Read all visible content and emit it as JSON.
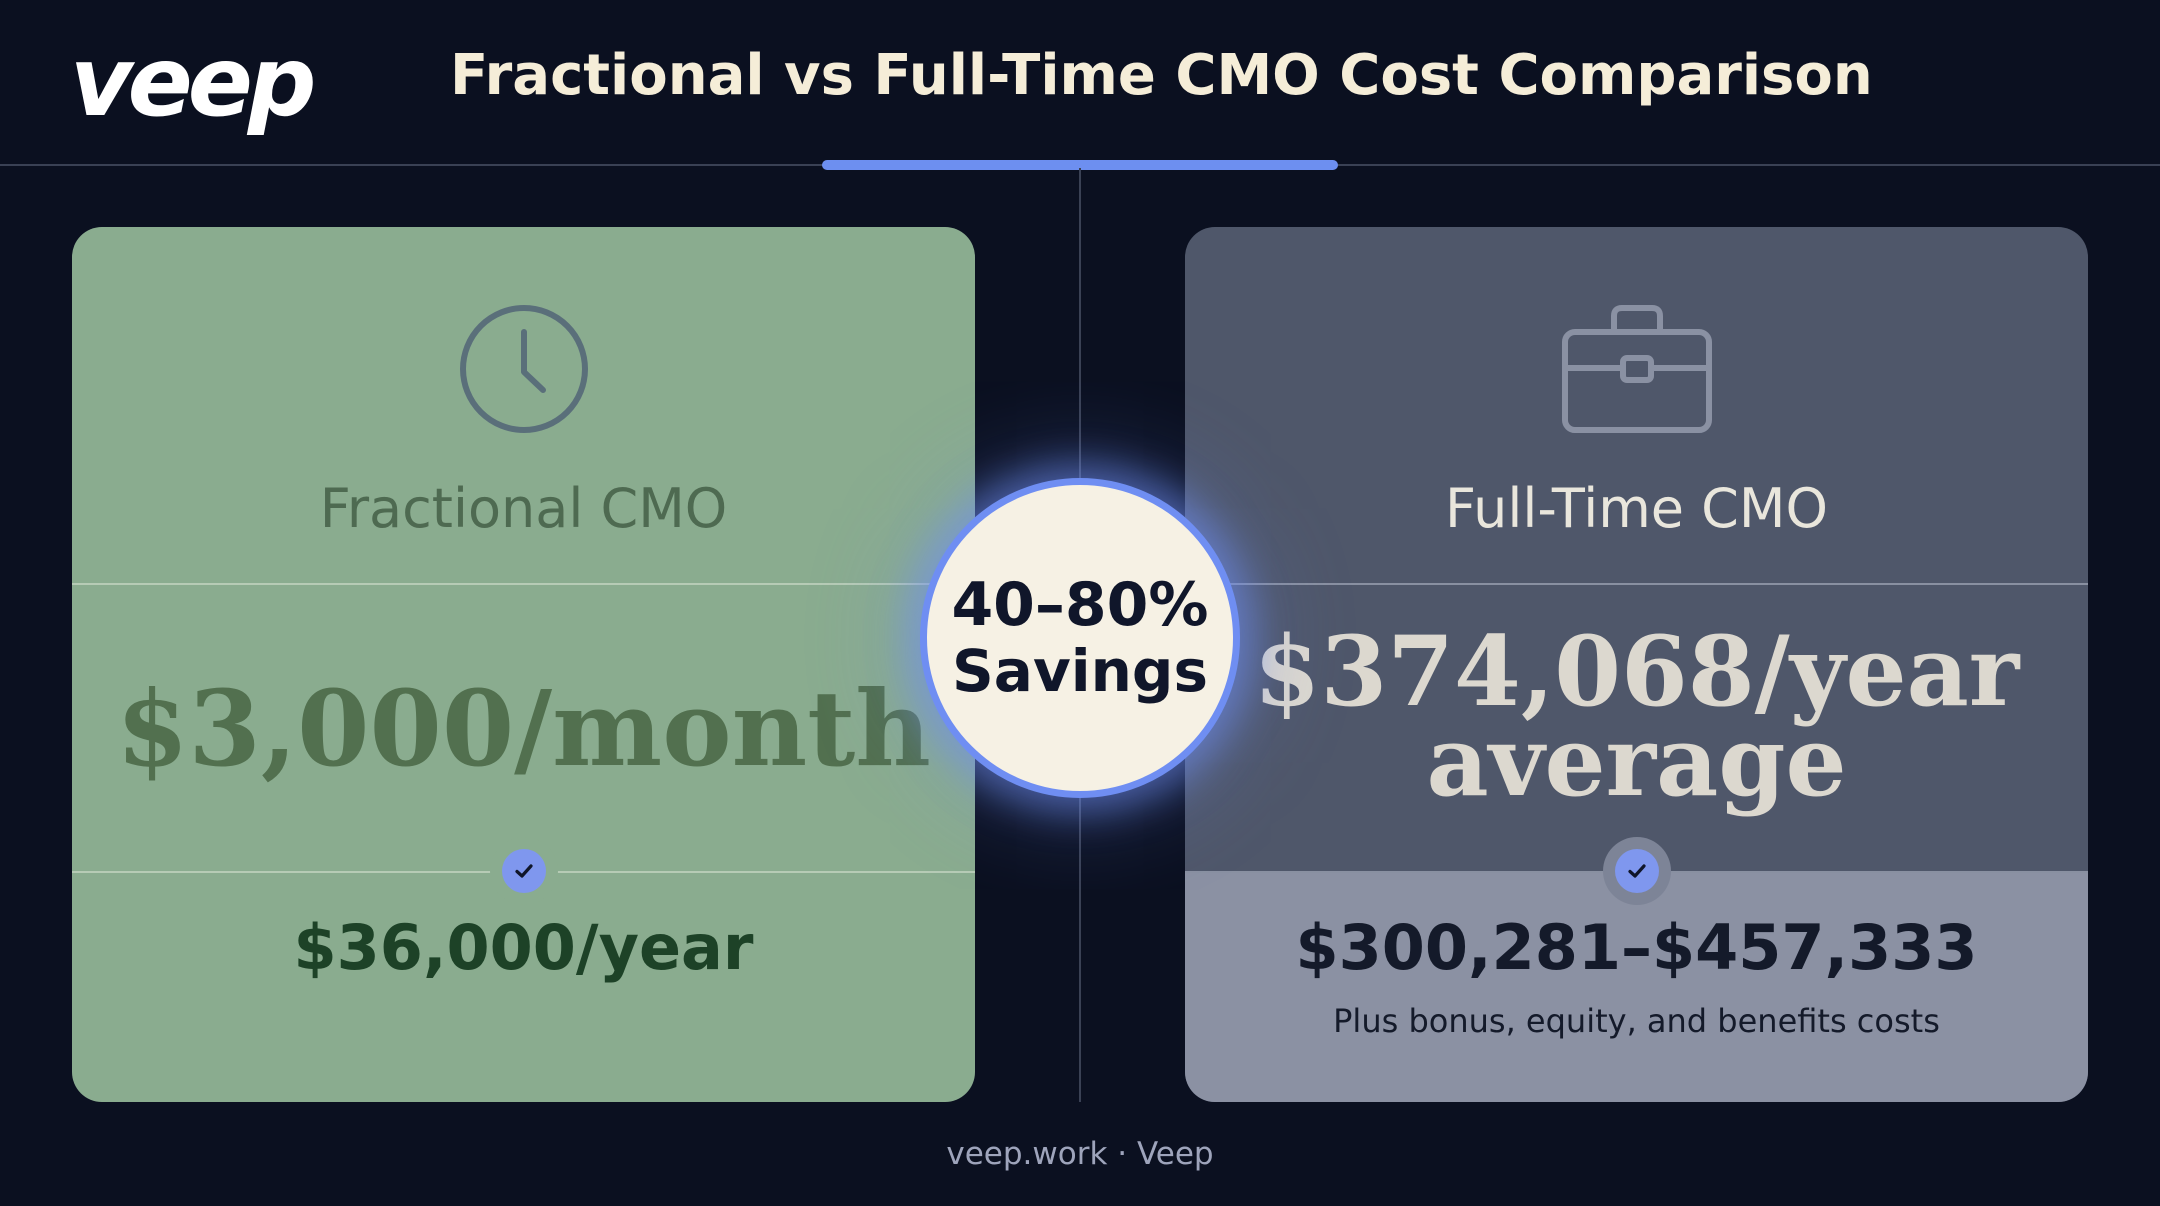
{
  "header": {
    "logo_text": "veep",
    "title": "Fractional vs Full-Time CMO Cost Comparison"
  },
  "cards": {
    "fractional": {
      "icon": "clock-icon",
      "label": "Fractional CMO",
      "price": "$3,000/month",
      "annual": "$36,000/year"
    },
    "fulltime": {
      "icon": "briefcase-icon",
      "label": "Full-Time CMO",
      "price_line1": "$374,068/year",
      "price_line2": "average",
      "range": "$300,281–$457,333",
      "note": "Plus bonus, equity, and benefits costs"
    }
  },
  "savings_badge": {
    "percent": "40–80%",
    "label": "Savings"
  },
  "footer": {
    "text": "veep.work · Veep"
  },
  "colors": {
    "background": "#0b1020",
    "fractional_card": "#8aac8f",
    "fulltime_card": "#4f576a",
    "accent": "#6d8ff0",
    "badge_fill": "#f6f1e4"
  }
}
